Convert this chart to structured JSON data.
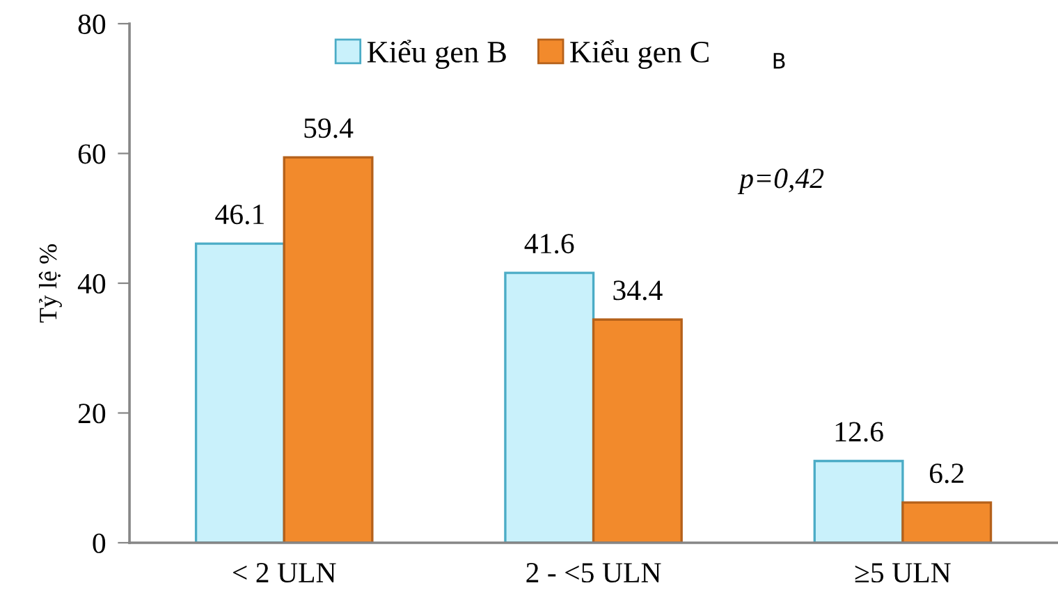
{
  "chart_data": {
    "type": "bar",
    "ylabel": "Tỷ lệ %",
    "categories": [
      "< 2 ULN",
      "2 - <5 ULN",
      "≥5 ULN"
    ],
    "series": [
      {
        "name": "Kiểu gen B",
        "color": "#c9f1fb",
        "values": [
          46.1,
          41.6,
          12.6
        ]
      },
      {
        "name": "Kiểu gen C",
        "color": "#f28a2c",
        "values": [
          59.4,
          34.4,
          6.2
        ]
      }
    ],
    "ylim": [
      0,
      80
    ],
    "yticks": [
      0,
      20,
      40,
      60,
      80
    ],
    "legend": "top",
    "data_labels": true,
    "annotations": [
      "p=0,42",
      "B"
    ]
  }
}
